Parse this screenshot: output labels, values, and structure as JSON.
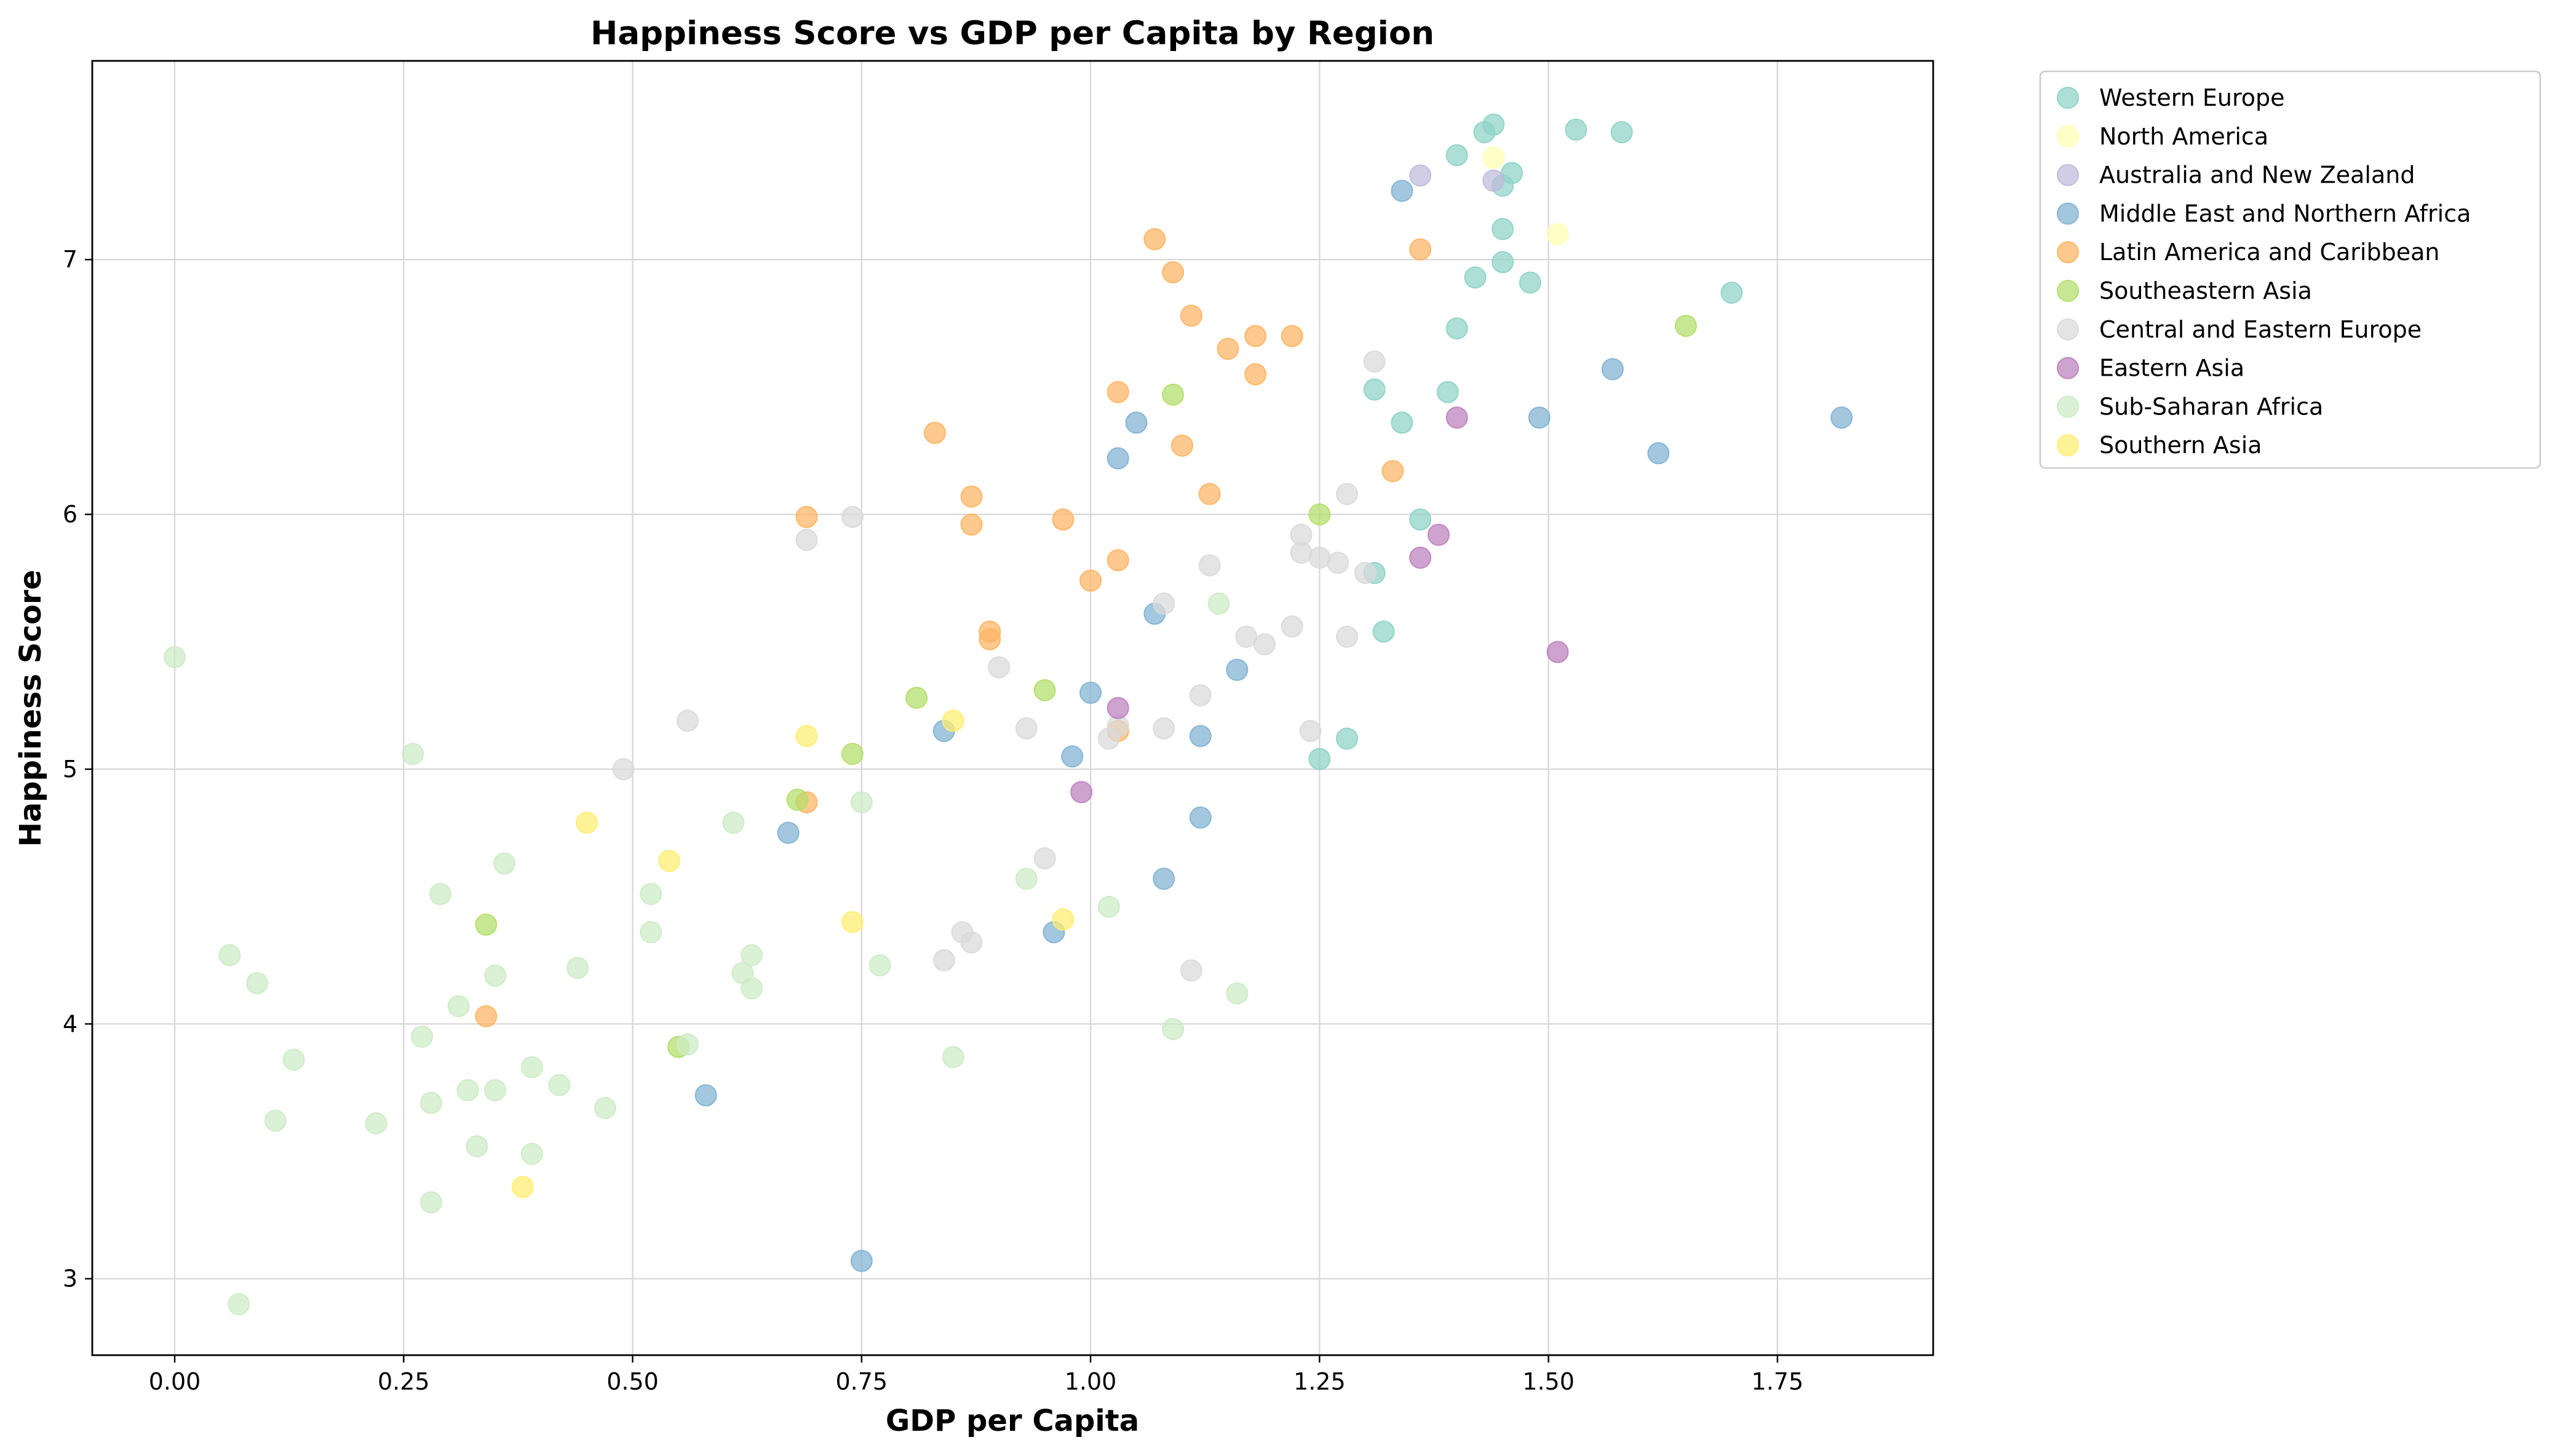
{
  "chart_data": {
    "type": "scatter",
    "title": "Happiness Score vs GDP per Capita by Region",
    "xlabel": "GDP per Capita",
    "ylabel": "Happiness Score",
    "xlim": [
      -0.09,
      1.92
    ],
    "ylim": [
      2.7,
      7.78
    ],
    "xticks": [
      0.0,
      0.25,
      0.5,
      0.75,
      1.0,
      1.25,
      1.5,
      1.75
    ],
    "xtick_labels": [
      "0.00",
      "0.25",
      "0.50",
      "0.75",
      "1.00",
      "1.25",
      "1.50",
      "1.75"
    ],
    "yticks": [
      3,
      4,
      5,
      6,
      7
    ],
    "ytick_labels": [
      "3",
      "4",
      "5",
      "6",
      "7"
    ],
    "grid": true,
    "legend_position": "outside-top-right",
    "series": [
      {
        "name": "Western Europe",
        "color": "#8dd3c7",
        "x": [
          1.44,
          1.53,
          1.58,
          1.43,
          1.4,
          1.46,
          1.45,
          1.45,
          1.42,
          1.45,
          1.48,
          1.7,
          1.4,
          1.39,
          1.31,
          1.34,
          1.36,
          1.31,
          1.32,
          1.28,
          1.25
        ],
        "y": [
          7.53,
          7.51,
          7.5,
          7.5,
          7.41,
          7.34,
          7.29,
          7.12,
          6.93,
          6.99,
          6.91,
          6.87,
          6.73,
          6.48,
          6.49,
          6.36,
          5.98,
          5.77,
          5.54,
          5.12,
          5.04
        ]
      },
      {
        "name": "North America",
        "color": "#ffffb3",
        "x": [
          1.44,
          1.51
        ],
        "y": [
          7.4,
          7.1
        ]
      },
      {
        "name": "Australia and New Zealand",
        "color": "#bebada",
        "x": [
          1.36,
          1.44
        ],
        "y": [
          7.33,
          7.31
        ]
      },
      {
        "name": "Middle East and Northern Africa",
        "color": "#80b1d3",
        "x": [
          1.34,
          1.57,
          1.49,
          1.82,
          1.62,
          1.05,
          1.03,
          1.07,
          1.16,
          1.0,
          0.84,
          0.98,
          1.12,
          1.12,
          0.67,
          1.08,
          0.96,
          0.58,
          0.75
        ],
        "y": [
          7.27,
          6.57,
          6.38,
          6.38,
          6.24,
          6.36,
          6.22,
          5.61,
          5.39,
          5.3,
          5.15,
          5.05,
          5.13,
          4.81,
          4.75,
          4.57,
          4.36,
          3.72,
          3.07
        ]
      },
      {
        "name": "Latin America and Caribbean",
        "color": "#fdb462",
        "x": [
          1.07,
          1.36,
          1.09,
          1.11,
          1.15,
          1.18,
          1.22,
          1.18,
          1.03,
          0.83,
          1.1,
          1.33,
          1.13,
          0.87,
          0.69,
          0.97,
          0.87,
          1.03,
          1.0,
          0.89,
          0.89,
          1.03,
          0.69,
          0.34
        ],
        "y": [
          7.08,
          7.04,
          6.95,
          6.78,
          6.65,
          6.7,
          6.7,
          6.55,
          6.48,
          6.32,
          6.27,
          6.17,
          6.08,
          6.07,
          5.99,
          5.98,
          5.96,
          5.82,
          5.74,
          5.54,
          5.51,
          5.15,
          4.87,
          4.03
        ]
      },
      {
        "name": "Southeastern Asia",
        "color": "#b3de69",
        "x": [
          1.65,
          1.09,
          1.25,
          0.81,
          0.95,
          0.74,
          0.68,
          0.34,
          0.55
        ],
        "y": [
          6.74,
          6.47,
          6.0,
          5.28,
          5.31,
          5.06,
          4.88,
          4.39,
          3.91
        ]
      },
      {
        "name": "Central and Eastern Europe",
        "color": "#d9d9d9",
        "x": [
          1.31,
          1.28,
          0.74,
          0.69,
          1.23,
          1.23,
          1.25,
          1.27,
          1.3,
          1.13,
          1.08,
          1.22,
          1.17,
          1.19,
          1.28,
          0.9,
          1.12,
          0.56,
          0.93,
          1.08,
          1.24,
          1.03,
          1.02,
          0.49,
          0.95,
          0.86,
          0.87,
          0.84,
          1.11
        ],
        "y": [
          6.6,
          6.08,
          5.99,
          5.9,
          5.92,
          5.85,
          5.83,
          5.81,
          5.77,
          5.8,
          5.65,
          5.56,
          5.52,
          5.49,
          5.52,
          5.4,
          5.29,
          5.19,
          5.16,
          5.16,
          5.15,
          5.17,
          5.12,
          5.0,
          4.65,
          4.36,
          4.32,
          4.25,
          4.21
        ]
      },
      {
        "name": "Eastern Asia",
        "color": "#bc80bd",
        "x": [
          1.4,
          1.38,
          1.36,
          1.51,
          1.03,
          0.99
        ],
        "y": [
          6.38,
          5.92,
          5.83,
          5.46,
          5.24,
          4.91
        ]
      },
      {
        "name": "Sub-Saharan Africa",
        "color": "#ccebc5",
        "x": [
          0.0,
          0.26,
          1.14,
          0.61,
          0.75,
          0.36,
          0.29,
          0.52,
          0.52,
          0.06,
          0.63,
          0.09,
          0.35,
          0.44,
          0.62,
          0.63,
          0.77,
          0.31,
          0.93,
          1.02,
          0.27,
          0.39,
          0.32,
          0.35,
          0.42,
          0.13,
          0.85,
          0.28,
          0.47,
          0.11,
          0.22,
          0.33,
          0.39,
          0.28,
          0.07,
          0.56,
          1.09,
          1.16
        ],
        "y": [
          5.44,
          5.06,
          5.65,
          4.79,
          4.87,
          4.63,
          4.51,
          4.51,
          4.36,
          4.27,
          4.27,
          4.16,
          4.19,
          4.22,
          4.2,
          4.14,
          4.23,
          4.07,
          4.57,
          4.46,
          3.95,
          3.83,
          3.74,
          3.74,
          3.76,
          3.86,
          3.87,
          3.69,
          3.67,
          3.62,
          3.61,
          3.52,
          3.49,
          3.3,
          2.9,
          3.92,
          3.98,
          4.12
        ]
      },
      {
        "name": "Southern Asia",
        "color": "#ffed6f",
        "x": [
          0.69,
          0.85,
          0.45,
          0.54,
          0.74,
          0.97,
          0.38
        ],
        "y": [
          5.13,
          5.19,
          4.79,
          4.64,
          4.4,
          4.41,
          3.36
        ]
      }
    ]
  }
}
